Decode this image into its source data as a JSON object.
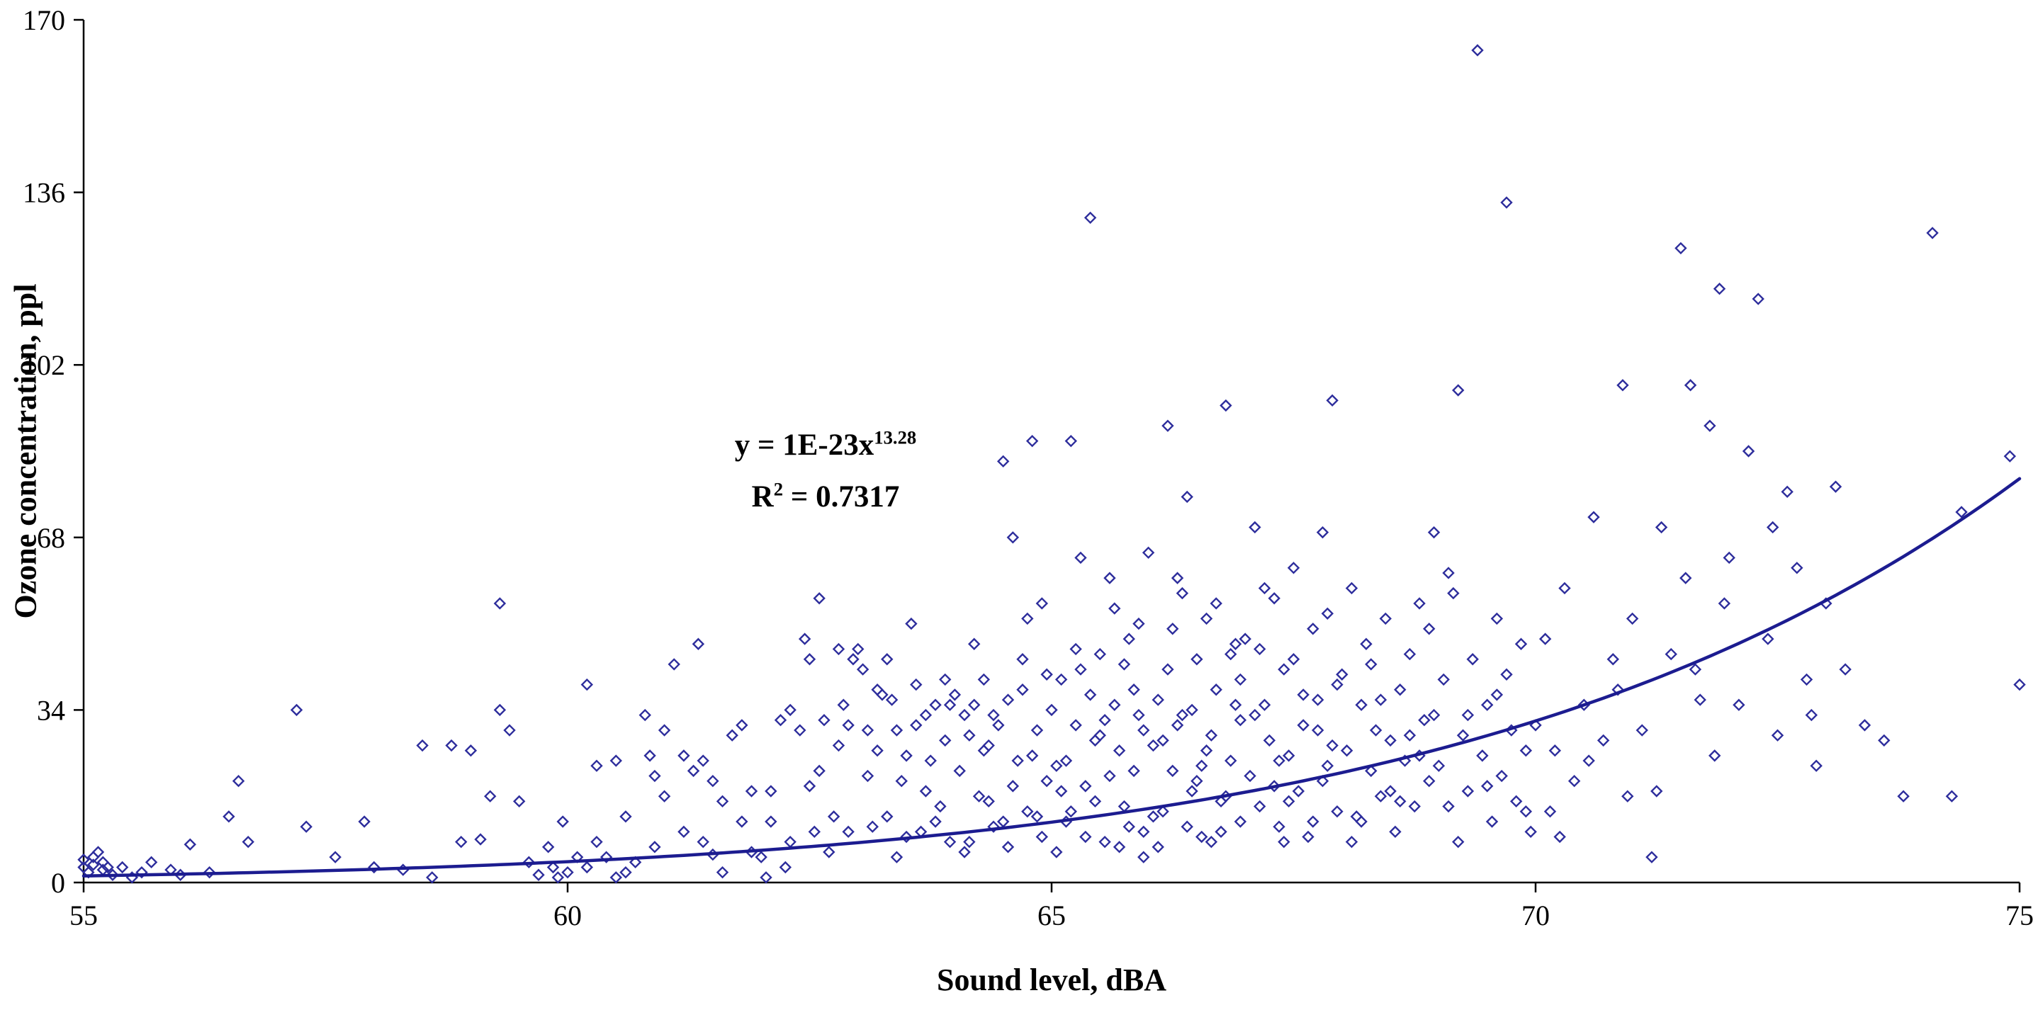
{
  "chart_data": {
    "type": "scatter",
    "title": "",
    "xlabel": "Sound level, dBA",
    "ylabel": "Ozone concentration, ppl",
    "xlim": [
      55,
      75
    ],
    "ylim": [
      0,
      170
    ],
    "x_ticks": [
      55,
      60,
      65,
      70,
      75
    ],
    "y_ticks": [
      0,
      34,
      68,
      102,
      136,
      170
    ],
    "grid": false,
    "legend": "none",
    "annotation": {
      "eq_prefix": "y = 1E-23x",
      "eq_exponent": "13.28",
      "r2_prefix": "R",
      "r2_sup": "2",
      "r2_rest": " = 0.7317"
    },
    "trendline": {
      "model": "power",
      "coefficient": 1e-23,
      "exponent": 13.28
    },
    "colors": {
      "marker": "#2d2d9c",
      "trendline": "#1c1c90",
      "axis": "#000000",
      "background": "#ffffff"
    },
    "points": [
      [
        55,
        3
      ],
      [
        55,
        4.5
      ],
      [
        55.05,
        2
      ],
      [
        55.1,
        5
      ],
      [
        55.1,
        3.5
      ],
      [
        55.15,
        6
      ],
      [
        55.2,
        2.5
      ],
      [
        55.2,
        4
      ],
      [
        55.25,
        3
      ],
      [
        55.3,
        1.5
      ],
      [
        55.4,
        3
      ],
      [
        55.5,
        1
      ],
      [
        55.6,
        2
      ],
      [
        55.7,
        4
      ],
      [
        55.9,
        2.5
      ],
      [
        56,
        1.5
      ],
      [
        56.1,
        7.5
      ],
      [
        56.3,
        2
      ],
      [
        56.5,
        13
      ],
      [
        56.6,
        20
      ],
      [
        56.7,
        8
      ],
      [
        57.2,
        34
      ],
      [
        57.3,
        11
      ],
      [
        57.6,
        5
      ],
      [
        57.9,
        12
      ],
      [
        58,
        3
      ],
      [
        58.3,
        2.5
      ],
      [
        58.5,
        27
      ],
      [
        58.6,
        1
      ],
      [
        58.8,
        27
      ],
      [
        58.9,
        8
      ],
      [
        59,
        26
      ],
      [
        59.1,
        8.5
      ],
      [
        59.2,
        17
      ],
      [
        59.3,
        55
      ],
      [
        59.3,
        34
      ],
      [
        59.4,
        30
      ],
      [
        59.5,
        16
      ],
      [
        59.6,
        4
      ],
      [
        59.7,
        1.5
      ],
      [
        59.8,
        7
      ],
      [
        59.85,
        3
      ],
      [
        59.9,
        1
      ],
      [
        59.95,
        12
      ],
      [
        60,
        2
      ],
      [
        60.1,
        5
      ],
      [
        60.2,
        39
      ],
      [
        60.2,
        3
      ],
      [
        60.3,
        23
      ],
      [
        60.3,
        8
      ],
      [
        60.4,
        5
      ],
      [
        60.5,
        1
      ],
      [
        60.5,
        24
      ],
      [
        60.6,
        13
      ],
      [
        60.6,
        2
      ],
      [
        60.7,
        4
      ],
      [
        60.8,
        33
      ],
      [
        60.85,
        25
      ],
      [
        60.9,
        21
      ],
      [
        60.9,
        7
      ],
      [
        61,
        17
      ],
      [
        61,
        30
      ],
      [
        61.1,
        43
      ],
      [
        61.2,
        25
      ],
      [
        61.2,
        10
      ],
      [
        61.3,
        22
      ],
      [
        61.35,
        47
      ],
      [
        61.4,
        8
      ],
      [
        61.4,
        24
      ],
      [
        61.5,
        5.5
      ],
      [
        61.5,
        20
      ],
      [
        61.6,
        2
      ],
      [
        61.6,
        16
      ],
      [
        61.7,
        29
      ],
      [
        61.8,
        31
      ],
      [
        61.8,
        12
      ],
      [
        61.9,
        6
      ],
      [
        61.9,
        18
      ],
      [
        62,
        5
      ],
      [
        62.05,
        1
      ],
      [
        62.1,
        18
      ],
      [
        62.1,
        12
      ],
      [
        62.2,
        32
      ],
      [
        62.25,
        3
      ],
      [
        62.3,
        34
      ],
      [
        62.3,
        8
      ],
      [
        62.4,
        30
      ],
      [
        62.45,
        48
      ],
      [
        62.5,
        44
      ],
      [
        62.5,
        19
      ],
      [
        62.55,
        10
      ],
      [
        62.6,
        56
      ],
      [
        62.6,
        22
      ],
      [
        62.65,
        32
      ],
      [
        62.7,
        6
      ],
      [
        62.75,
        13
      ],
      [
        62.8,
        27
      ],
      [
        62.8,
        46
      ],
      [
        62.85,
        35
      ],
      [
        62.9,
        10
      ],
      [
        62.9,
        31
      ],
      [
        62.95,
        44
      ],
      [
        63,
        46
      ],
      [
        63.05,
        42
      ],
      [
        63.1,
        30
      ],
      [
        63.1,
        21
      ],
      [
        63.15,
        11
      ],
      [
        63.2,
        38
      ],
      [
        63.2,
        26
      ],
      [
        63.25,
        37
      ],
      [
        63.3,
        13
      ],
      [
        63.3,
        44
      ],
      [
        63.35,
        36
      ],
      [
        63.4,
        30
      ],
      [
        63.4,
        5
      ],
      [
        63.45,
        20
      ],
      [
        63.5,
        25
      ],
      [
        63.5,
        9
      ],
      [
        63.55,
        51
      ],
      [
        63.6,
        39
      ],
      [
        63.6,
        31
      ],
      [
        63.65,
        10
      ],
      [
        63.7,
        33
      ],
      [
        63.7,
        18
      ],
      [
        63.75,
        24
      ],
      [
        63.8,
        35
      ],
      [
        63.8,
        12
      ],
      [
        63.85,
        15
      ],
      [
        63.9,
        28
      ],
      [
        63.9,
        40
      ],
      [
        63.95,
        8
      ],
      [
        63.95,
        35
      ],
      [
        64,
        37
      ],
      [
        64.05,
        22
      ],
      [
        64.1,
        33
      ],
      [
        64.1,
        6
      ],
      [
        64.15,
        8
      ],
      [
        64.15,
        29
      ],
      [
        64.2,
        35
      ],
      [
        64.2,
        47
      ],
      [
        64.25,
        17
      ],
      [
        64.3,
        40
      ],
      [
        64.3,
        26
      ],
      [
        64.35,
        27
      ],
      [
        64.35,
        16
      ],
      [
        64.4,
        11
      ],
      [
        64.4,
        33
      ],
      [
        64.45,
        31
      ],
      [
        64.5,
        83
      ],
      [
        64.5,
        12
      ],
      [
        64.55,
        36
      ],
      [
        64.55,
        7
      ],
      [
        64.6,
        68
      ],
      [
        64.6,
        19
      ],
      [
        64.65,
        24
      ],
      [
        64.7,
        44
      ],
      [
        64.7,
        38
      ],
      [
        64.75,
        14
      ],
      [
        64.75,
        52
      ],
      [
        64.8,
        87
      ],
      [
        64.8,
        25
      ],
      [
        64.85,
        30
      ],
      [
        64.85,
        13
      ],
      [
        64.9,
        55
      ],
      [
        64.9,
        9
      ],
      [
        64.95,
        20
      ],
      [
        64.95,
        41
      ],
      [
        65,
        34
      ],
      [
        65.05,
        23
      ],
      [
        65.05,
        6
      ],
      [
        65.1,
        40
      ],
      [
        65.1,
        18
      ],
      [
        65.15,
        12
      ],
      [
        65.15,
        24
      ],
      [
        65.2,
        87
      ],
      [
        65.2,
        14
      ],
      [
        65.25,
        31
      ],
      [
        65.25,
        46
      ],
      [
        65.3,
        64
      ],
      [
        65.3,
        42
      ],
      [
        65.35,
        19
      ],
      [
        65.35,
        9
      ],
      [
        65.4,
        131
      ],
      [
        65.4,
        37
      ],
      [
        65.45,
        28
      ],
      [
        65.45,
        16
      ],
      [
        65.5,
        45
      ],
      [
        65.5,
        29
      ],
      [
        65.55,
        8
      ],
      [
        65.55,
        32
      ],
      [
        65.6,
        60
      ],
      [
        65.6,
        21
      ],
      [
        65.65,
        35
      ],
      [
        65.65,
        54
      ],
      [
        65.7,
        26
      ],
      [
        65.7,
        7
      ],
      [
        65.75,
        15
      ],
      [
        65.75,
        43
      ],
      [
        65.8,
        48
      ],
      [
        65.8,
        11
      ],
      [
        65.85,
        22
      ],
      [
        65.85,
        38
      ],
      [
        65.9,
        33
      ],
      [
        65.9,
        51
      ],
      [
        65.95,
        10
      ],
      [
        65.95,
        30
      ],
      [
        65.95,
        5
      ],
      [
        66,
        65
      ],
      [
        66.05,
        27
      ],
      [
        66.05,
        13
      ],
      [
        66.1,
        36
      ],
      [
        66.1,
        7
      ],
      [
        66.15,
        14
      ],
      [
        66.15,
        28
      ],
      [
        66.2,
        90
      ],
      [
        66.2,
        42
      ],
      [
        66.25,
        22
      ],
      [
        66.25,
        50
      ],
      [
        66.3,
        60
      ],
      [
        66.3,
        31
      ],
      [
        66.35,
        33
      ],
      [
        66.35,
        57
      ],
      [
        66.4,
        76
      ],
      [
        66.4,
        11
      ],
      [
        66.45,
        18
      ],
      [
        66.45,
        34
      ],
      [
        66.5,
        44
      ],
      [
        66.5,
        20
      ],
      [
        66.55,
        9
      ],
      [
        66.55,
        23
      ],
      [
        66.6,
        52
      ],
      [
        66.6,
        26
      ],
      [
        66.65,
        29
      ],
      [
        66.65,
        8
      ],
      [
        66.7,
        38
      ],
      [
        66.7,
        55
      ],
      [
        66.75,
        16
      ],
      [
        66.75,
        10
      ],
      [
        66.8,
        94
      ],
      [
        66.8,
        17
      ],
      [
        66.85,
        24
      ],
      [
        66.85,
        45
      ],
      [
        66.9,
        47
      ],
      [
        66.9,
        35
      ],
      [
        66.95,
        12
      ],
      [
        66.95,
        40
      ],
      [
        66.95,
        32
      ],
      [
        67,
        48
      ],
      [
        67.05,
        21
      ],
      [
        67.1,
        70
      ],
      [
        67.1,
        33
      ],
      [
        67.15,
        15
      ],
      [
        67.15,
        46
      ],
      [
        67.2,
        35
      ],
      [
        67.2,
        58
      ],
      [
        67.25,
        28
      ],
      [
        67.3,
        56
      ],
      [
        67.3,
        19
      ],
      [
        67.35,
        11
      ],
      [
        67.35,
        24
      ],
      [
        67.4,
        42
      ],
      [
        67.4,
        8
      ],
      [
        67.45,
        25
      ],
      [
        67.45,
        16
      ],
      [
        67.5,
        62
      ],
      [
        67.5,
        44
      ],
      [
        67.55,
        18
      ],
      [
        67.6,
        37
      ],
      [
        67.6,
        31
      ],
      [
        67.65,
        9
      ],
      [
        67.7,
        50
      ],
      [
        67.7,
        12
      ],
      [
        67.75,
        30
      ],
      [
        67.75,
        36
      ],
      [
        67.8,
        69
      ],
      [
        67.8,
        20
      ],
      [
        67.85,
        23
      ],
      [
        67.85,
        53
      ],
      [
        67.9,
        95
      ],
      [
        67.9,
        27
      ],
      [
        67.95,
        14
      ],
      [
        67.95,
        39
      ],
      [
        68,
        41
      ],
      [
        68.05,
        26
      ],
      [
        68.1,
        58
      ],
      [
        68.1,
        8
      ],
      [
        68.15,
        13
      ],
      [
        68.2,
        35
      ],
      [
        68.2,
        12
      ],
      [
        68.25,
        47
      ],
      [
        68.3,
        22
      ],
      [
        68.3,
        43
      ],
      [
        68.35,
        30
      ],
      [
        68.4,
        17
      ],
      [
        68.4,
        36
      ],
      [
        68.45,
        52
      ],
      [
        68.5,
        28
      ],
      [
        68.5,
        18
      ],
      [
        68.55,
        10
      ],
      [
        68.6,
        38
      ],
      [
        68.6,
        16
      ],
      [
        68.65,
        24
      ],
      [
        68.7,
        45
      ],
      [
        68.7,
        29
      ],
      [
        68.75,
        15
      ],
      [
        68.8,
        55
      ],
      [
        68.8,
        25
      ],
      [
        68.85,
        32
      ],
      [
        68.9,
        20
      ],
      [
        68.9,
        50
      ],
      [
        68.95,
        69
      ],
      [
        68.95,
        33
      ],
      [
        69,
        23
      ],
      [
        69.05,
        40
      ],
      [
        69.1,
        15
      ],
      [
        69.1,
        61
      ],
      [
        69.15,
        57
      ],
      [
        69.2,
        97
      ],
      [
        69.2,
        8
      ],
      [
        69.25,
        29
      ],
      [
        69.3,
        18
      ],
      [
        69.3,
        33
      ],
      [
        69.35,
        44
      ],
      [
        69.4,
        164
      ],
      [
        69.45,
        25
      ],
      [
        69.5,
        35
      ],
      [
        69.5,
        19
      ],
      [
        69.55,
        12
      ],
      [
        69.6,
        52
      ],
      [
        69.6,
        37
      ],
      [
        69.65,
        21
      ],
      [
        69.7,
        134
      ],
      [
        69.7,
        41
      ],
      [
        69.75,
        30
      ],
      [
        69.8,
        16
      ],
      [
        69.85,
        47
      ],
      [
        69.9,
        26
      ],
      [
        69.9,
        14
      ],
      [
        69.95,
        10
      ],
      [
        70,
        31
      ],
      [
        70.1,
        48
      ],
      [
        70.15,
        14
      ],
      [
        70.2,
        26
      ],
      [
        70.25,
        9
      ],
      [
        70.3,
        58
      ],
      [
        70.4,
        20
      ],
      [
        70.5,
        35
      ],
      [
        70.55,
        24
      ],
      [
        70.6,
        72
      ],
      [
        70.7,
        28
      ],
      [
        70.8,
        44
      ],
      [
        70.85,
        38
      ],
      [
        70.9,
        98
      ],
      [
        70.95,
        17
      ],
      [
        71,
        52
      ],
      [
        71.1,
        30
      ],
      [
        71.2,
        5
      ],
      [
        71.25,
        18
      ],
      [
        71.3,
        70
      ],
      [
        71.4,
        45
      ],
      [
        71.5,
        125
      ],
      [
        71.55,
        60
      ],
      [
        71.6,
        98
      ],
      [
        71.65,
        42
      ],
      [
        71.7,
        36
      ],
      [
        71.8,
        90
      ],
      [
        71.85,
        25
      ],
      [
        71.9,
        117
      ],
      [
        71.95,
        55
      ],
      [
        72,
        64
      ],
      [
        72.1,
        35
      ],
      [
        72.2,
        85
      ],
      [
        72.3,
        115
      ],
      [
        72.4,
        48
      ],
      [
        72.45,
        70
      ],
      [
        72.5,
        29
      ],
      [
        72.6,
        77
      ],
      [
        72.7,
        62
      ],
      [
        72.8,
        40
      ],
      [
        72.85,
        33
      ],
      [
        72.9,
        23
      ],
      [
        73,
        55
      ],
      [
        73.1,
        78
      ],
      [
        73.2,
        42
      ],
      [
        73.4,
        31
      ],
      [
        73.6,
        28
      ],
      [
        73.8,
        17
      ],
      [
        74.1,
        128
      ],
      [
        74.3,
        17
      ],
      [
        74.4,
        73
      ],
      [
        74.9,
        84
      ],
      [
        75,
        39
      ]
    ]
  }
}
